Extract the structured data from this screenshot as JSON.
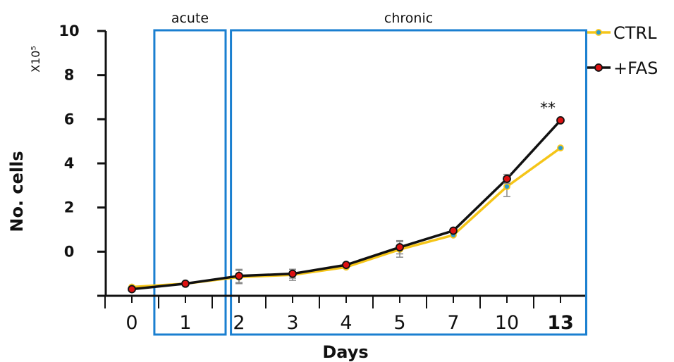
{
  "chart_data": {
    "type": "line",
    "xlabel": "Days",
    "ylabel": "No. cells",
    "y_multiplier": "X10⁵",
    "x_ticks": [
      "0",
      "1",
      "2",
      "3",
      "4",
      "5",
      "7",
      "10",
      "13"
    ],
    "y_ticks": [
      "10",
      "8",
      "6",
      "4",
      "2",
      "0"
    ],
    "ylim": [
      -2,
      10
    ],
    "grid": false,
    "legend_position": "top-right",
    "regions": [
      {
        "label": "acute",
        "from_index": 0.42,
        "to_index": 1.75
      },
      {
        "label": "chronic",
        "from_index": 1.85,
        "to_index": 8.48
      }
    ],
    "series": [
      {
        "name": "CTRL",
        "color": "#f5c518",
        "marker_fill": "#2a9ad0",
        "points": [
          {
            "i": 0,
            "y": -1.6
          },
          {
            "i": 1,
            "y": -1.45
          },
          {
            "i": 2,
            "y": -1.15
          },
          {
            "i": 3,
            "y": -1.05
          },
          {
            "i": 4,
            "y": -0.7
          },
          {
            "i": 5,
            "y": 0.1
          },
          {
            "i": 6,
            "y": 0.75
          },
          {
            "i": 7,
            "y": 2.95
          },
          {
            "i": 8,
            "y": 4.7
          }
        ],
        "error": [
          0.05,
          0.05,
          0.3,
          0.25,
          0.1,
          0.35,
          0.1,
          0.45,
          0.05
        ]
      },
      {
        "name": "+FAS",
        "color": "#111111",
        "marker_fill": "#dd1111",
        "points": [
          {
            "i": 0,
            "y": -1.7
          },
          {
            "i": 1,
            "y": -1.45
          },
          {
            "i": 2,
            "y": -1.1
          },
          {
            "i": 3,
            "y": -1.0
          },
          {
            "i": 4,
            "y": -0.6
          },
          {
            "i": 5,
            "y": 0.2
          },
          {
            "i": 6,
            "y": 0.95
          },
          {
            "i": 7,
            "y": 3.3
          },
          {
            "i": 8,
            "y": 5.95
          }
        ],
        "error": [
          0.05,
          0.05,
          0.3,
          0.2,
          0.1,
          0.3,
          0.1,
          0.2,
          0.05
        ]
      }
    ],
    "annotations": [
      {
        "text": "**",
        "series": "+FAS",
        "i": 8
      }
    ]
  }
}
